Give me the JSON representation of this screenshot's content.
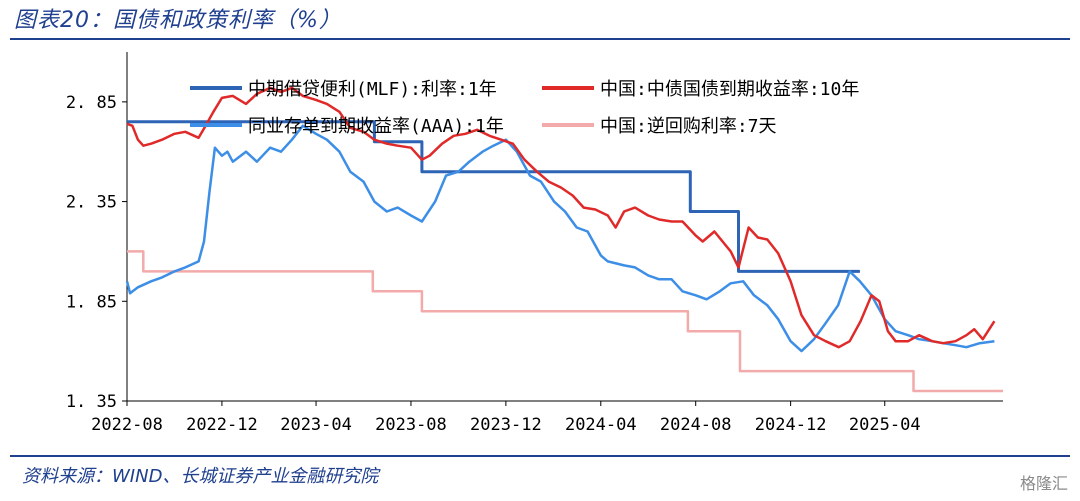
{
  "figure": {
    "title": "图表20：国债和政策利率（%）",
    "source": "资料来源：WIND、长城证券产业金融研究院",
    "watermark": "格隆汇"
  },
  "chart_data": {
    "type": "line",
    "title": "",
    "xlabel": "",
    "ylabel": "",
    "ylim": [
      1.35,
      3.1
    ],
    "yticks": [
      1.35,
      1.85,
      2.35,
      2.85
    ],
    "ytick_labels": [
      "1. 35",
      "1. 85",
      "2. 35",
      "2. 85"
    ],
    "xlim": [
      "2022-08-01",
      "2025-08-31"
    ],
    "xticks": [
      "2022-08-01",
      "2022-12-01",
      "2023-04-01",
      "2023-08-01",
      "2023-12-01",
      "2024-04-01",
      "2024-08-01",
      "2024-12-01",
      "2025-04-01"
    ],
    "xtick_labels": [
      "2022-08",
      "2022-12",
      "2023-04",
      "2023-08",
      "2023-12",
      "2024-04",
      "2024-08",
      "2024-12",
      "2025-04"
    ],
    "grid": false,
    "legend_position": "top",
    "series": [
      {
        "name": "中期借贷便利(MLF):利率:1年",
        "color": "#2e64b5",
        "width": 3,
        "step": true,
        "points": [
          [
            "2022-08-01",
            2.75
          ],
          [
            "2022-08-15",
            2.75
          ],
          [
            "2023-06-15",
            2.65
          ],
          [
            "2023-08-15",
            2.5
          ],
          [
            "2024-07-25",
            2.3
          ],
          [
            "2024-09-25",
            2.0
          ],
          [
            "2025-02-28",
            2.0
          ]
        ]
      },
      {
        "name": "中国:中债国债到期收益率:10年",
        "color": "#e02a2a",
        "width": 2.5,
        "step": false,
        "points": [
          [
            "2022-08-01",
            2.74
          ],
          [
            "2022-08-08",
            2.73
          ],
          [
            "2022-08-15",
            2.66
          ],
          [
            "2022-08-22",
            2.63
          ],
          [
            "2022-09-01",
            2.64
          ],
          [
            "2022-09-15",
            2.66
          ],
          [
            "2022-10-01",
            2.69
          ],
          [
            "2022-10-15",
            2.7
          ],
          [
            "2022-11-01",
            2.67
          ],
          [
            "2022-11-10",
            2.73
          ],
          [
            "2022-11-20",
            2.8
          ],
          [
            "2022-12-01",
            2.87
          ],
          [
            "2022-12-15",
            2.88
          ],
          [
            "2023-01-01",
            2.84
          ],
          [
            "2023-01-15",
            2.89
          ],
          [
            "2023-02-01",
            2.92
          ],
          [
            "2023-02-15",
            2.9
          ],
          [
            "2023-03-01",
            2.92
          ],
          [
            "2023-03-15",
            2.88
          ],
          [
            "2023-04-01",
            2.86
          ],
          [
            "2023-04-15",
            2.84
          ],
          [
            "2023-05-01",
            2.8
          ],
          [
            "2023-05-15",
            2.72
          ],
          [
            "2023-06-01",
            2.7
          ],
          [
            "2023-06-15",
            2.66
          ],
          [
            "2023-07-01",
            2.64
          ],
          [
            "2023-07-15",
            2.63
          ],
          [
            "2023-08-01",
            2.62
          ],
          [
            "2023-08-15",
            2.56
          ],
          [
            "2023-08-25",
            2.58
          ],
          [
            "2023-09-10",
            2.64
          ],
          [
            "2023-09-25",
            2.68
          ],
          [
            "2023-10-10",
            2.69
          ],
          [
            "2023-10-25",
            2.71
          ],
          [
            "2023-11-10",
            2.68
          ],
          [
            "2023-11-25",
            2.66
          ],
          [
            "2023-12-10",
            2.64
          ],
          [
            "2023-12-25",
            2.56
          ],
          [
            "2024-01-10",
            2.5
          ],
          [
            "2024-01-25",
            2.45
          ],
          [
            "2024-02-10",
            2.42
          ],
          [
            "2024-02-25",
            2.38
          ],
          [
            "2024-03-10",
            2.32
          ],
          [
            "2024-03-25",
            2.31
          ],
          [
            "2024-04-10",
            2.28
          ],
          [
            "2024-04-20",
            2.22
          ],
          [
            "2024-05-01",
            2.3
          ],
          [
            "2024-05-15",
            2.32
          ],
          [
            "2024-06-01",
            2.28
          ],
          [
            "2024-06-15",
            2.26
          ],
          [
            "2024-07-01",
            2.25
          ],
          [
            "2024-07-15",
            2.25
          ],
          [
            "2024-08-01",
            2.18
          ],
          [
            "2024-08-10",
            2.15
          ],
          [
            "2024-08-25",
            2.2
          ],
          [
            "2024-09-15",
            2.1
          ],
          [
            "2024-09-25",
            2.02
          ],
          [
            "2024-10-08",
            2.22
          ],
          [
            "2024-10-20",
            2.17
          ],
          [
            "2024-11-01",
            2.16
          ],
          [
            "2024-11-15",
            2.09
          ],
          [
            "2024-12-01",
            1.95
          ],
          [
            "2024-12-15",
            1.78
          ],
          [
            "2024-12-31",
            1.68
          ],
          [
            "2025-01-15",
            1.65
          ],
          [
            "2025-02-01",
            1.62
          ],
          [
            "2025-02-15",
            1.65
          ],
          [
            "2025-03-01",
            1.75
          ],
          [
            "2025-03-15",
            1.88
          ],
          [
            "2025-03-25",
            1.85
          ],
          [
            "2025-04-05",
            1.7
          ],
          [
            "2025-04-15",
            1.65
          ],
          [
            "2025-05-01",
            1.65
          ],
          [
            "2025-05-15",
            1.68
          ],
          [
            "2025-06-01",
            1.65
          ],
          [
            "2025-06-15",
            1.64
          ],
          [
            "2025-07-01",
            1.65
          ],
          [
            "2025-07-15",
            1.68
          ],
          [
            "2025-07-25",
            1.71
          ],
          [
            "2025-08-05",
            1.66
          ],
          [
            "2025-08-20",
            1.75
          ]
        ]
      },
      {
        "name": "同业存单到期收益率(AAA):1年",
        "color": "#3c8ee6",
        "width": 2.5,
        "step": false,
        "points": [
          [
            "2022-08-01",
            1.95
          ],
          [
            "2022-08-05",
            1.89
          ],
          [
            "2022-08-15",
            1.92
          ],
          [
            "2022-09-01",
            1.95
          ],
          [
            "2022-09-15",
            1.97
          ],
          [
            "2022-10-01",
            2.0
          ],
          [
            "2022-10-15",
            2.02
          ],
          [
            "2022-11-01",
            2.05
          ],
          [
            "2022-11-08",
            2.15
          ],
          [
            "2022-11-15",
            2.4
          ],
          [
            "2022-11-22",
            2.62
          ],
          [
            "2022-12-01",
            2.58
          ],
          [
            "2022-12-08",
            2.6
          ],
          [
            "2022-12-15",
            2.55
          ],
          [
            "2023-01-01",
            2.6
          ],
          [
            "2023-01-15",
            2.55
          ],
          [
            "2023-02-01",
            2.62
          ],
          [
            "2023-02-15",
            2.6
          ],
          [
            "2023-03-01",
            2.66
          ],
          [
            "2023-03-15",
            2.73
          ],
          [
            "2023-04-01",
            2.69
          ],
          [
            "2023-04-15",
            2.66
          ],
          [
            "2023-05-01",
            2.6
          ],
          [
            "2023-05-15",
            2.5
          ],
          [
            "2023-06-01",
            2.45
          ],
          [
            "2023-06-15",
            2.35
          ],
          [
            "2023-07-01",
            2.3
          ],
          [
            "2023-07-15",
            2.32
          ],
          [
            "2023-08-01",
            2.28
          ],
          [
            "2023-08-15",
            2.25
          ],
          [
            "2023-09-01",
            2.35
          ],
          [
            "2023-09-15",
            2.48
          ],
          [
            "2023-10-01",
            2.5
          ],
          [
            "2023-10-15",
            2.55
          ],
          [
            "2023-11-01",
            2.6
          ],
          [
            "2023-11-15",
            2.63
          ],
          [
            "2023-12-01",
            2.66
          ],
          [
            "2023-12-15",
            2.6
          ],
          [
            "2024-01-01",
            2.48
          ],
          [
            "2024-01-15",
            2.45
          ],
          [
            "2024-02-01",
            2.35
          ],
          [
            "2024-02-15",
            2.3
          ],
          [
            "2024-03-01",
            2.22
          ],
          [
            "2024-03-15",
            2.2
          ],
          [
            "2024-04-01",
            2.08
          ],
          [
            "2024-04-10",
            2.05
          ],
          [
            "2024-05-01",
            2.03
          ],
          [
            "2024-05-15",
            2.02
          ],
          [
            "2024-06-01",
            1.98
          ],
          [
            "2024-06-15",
            1.96
          ],
          [
            "2024-07-01",
            1.96
          ],
          [
            "2024-07-15",
            1.9
          ],
          [
            "2024-08-01",
            1.88
          ],
          [
            "2024-08-15",
            1.86
          ],
          [
            "2024-09-01",
            1.9
          ],
          [
            "2024-09-15",
            1.94
          ],
          [
            "2024-10-01",
            1.95
          ],
          [
            "2024-10-15",
            1.88
          ],
          [
            "2024-11-01",
            1.83
          ],
          [
            "2024-11-15",
            1.76
          ],
          [
            "2024-12-01",
            1.65
          ],
          [
            "2024-12-15",
            1.6
          ],
          [
            "2024-12-31",
            1.66
          ],
          [
            "2025-01-15",
            1.74
          ],
          [
            "2025-01-31",
            1.83
          ],
          [
            "2025-02-15",
            2.0
          ],
          [
            "2025-02-28",
            1.95
          ],
          [
            "2025-03-15",
            1.88
          ],
          [
            "2025-04-01",
            1.76
          ],
          [
            "2025-04-15",
            1.7
          ],
          [
            "2025-05-01",
            1.68
          ],
          [
            "2025-05-15",
            1.66
          ],
          [
            "2025-06-01",
            1.65
          ],
          [
            "2025-06-15",
            1.64
          ],
          [
            "2025-07-01",
            1.63
          ],
          [
            "2025-07-15",
            1.62
          ],
          [
            "2025-08-01",
            1.64
          ],
          [
            "2025-08-20",
            1.65
          ]
        ]
      },
      {
        "name": "中国:逆回购利率:7天",
        "color": "#f2aaaa",
        "width": 2.5,
        "step": true,
        "points": [
          [
            "2022-08-01",
            2.1
          ],
          [
            "2022-08-22",
            2.0
          ],
          [
            "2023-06-13",
            1.9
          ],
          [
            "2023-08-15",
            1.8
          ],
          [
            "2024-07-22",
            1.7
          ],
          [
            "2024-09-27",
            1.5
          ],
          [
            "2025-05-08",
            1.4
          ],
          [
            "2025-08-31",
            1.4
          ]
        ]
      }
    ]
  }
}
